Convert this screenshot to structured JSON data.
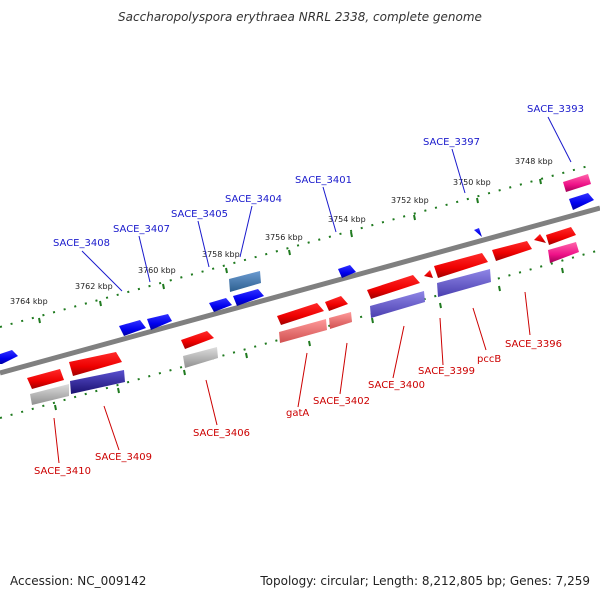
{
  "title": "Saccharopolyspora erythraea NRRL 2338, complete genome",
  "footer": {
    "accession": "Accession: NC_009142",
    "topology": "Topology: circular; Length: 8,212,805 bp; Genes: 7,259"
  },
  "colors": {
    "backbone": "#808080",
    "plus_strand_label": "#1a1acc",
    "minus_strand_label": "#cc0000",
    "plus_gene": "#0000ff",
    "minus_gene": "#ff0000",
    "gene_green_dots": "#1f7a1f"
  },
  "ticks": [
    {
      "label": "3748 kbp"
    },
    {
      "label": "3750 kbp"
    },
    {
      "label": "3752 kbp"
    },
    {
      "label": "3754 kbp"
    },
    {
      "label": "3756 kbp"
    },
    {
      "label": "3758 kbp"
    },
    {
      "label": "3760 kbp"
    },
    {
      "label": "3762 kbp"
    },
    {
      "label": "3764 kbp"
    }
  ],
  "plus_labels": [
    {
      "text": "SACE_3393"
    },
    {
      "text": "SACE_3397"
    },
    {
      "text": "SACE_3401"
    },
    {
      "text": "SACE_3404"
    },
    {
      "text": "SACE_3405"
    },
    {
      "text": "SACE_3407"
    },
    {
      "text": "SACE_3408"
    }
  ],
  "minus_labels": [
    {
      "text": "SACE_3396"
    },
    {
      "text": "pccB"
    },
    {
      "text": "SACE_3399"
    },
    {
      "text": "SACE_3400"
    },
    {
      "text": "SACE_3402"
    },
    {
      "text": "gatA"
    },
    {
      "text": "SACE_3406"
    },
    {
      "text": "SACE_3409"
    },
    {
      "text": "SACE_3410"
    }
  ]
}
